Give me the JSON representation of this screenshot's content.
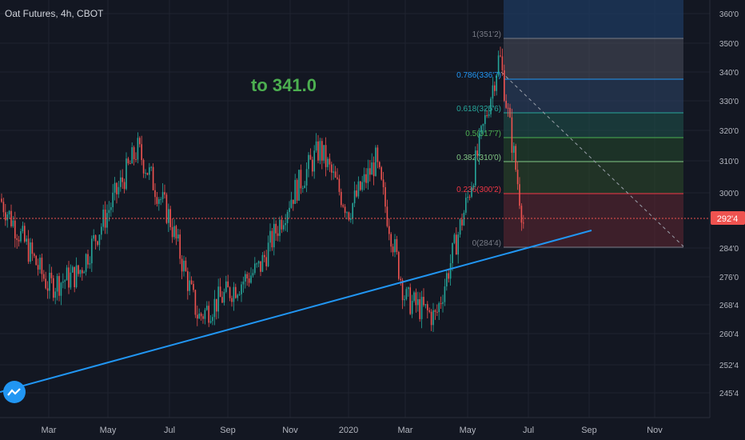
{
  "header": {
    "title": "Oat Futures, 4h, CBOT"
  },
  "annotation": {
    "text": "to 341.0",
    "color": "#4caf50"
  },
  "price_tag": {
    "value": "292'4",
    "color": "#ef5350"
  },
  "y_axis": {
    "ticks": [
      "360'0",
      "350'0",
      "340'0",
      "330'0",
      "320'0",
      "310'0",
      "300'0",
      "292'4",
      "284'0",
      "276'0",
      "268'4",
      "260'4",
      "252'4",
      "245'4"
    ]
  },
  "x_axis": {
    "ticks": [
      "Mar",
      "May",
      "Jul",
      "Sep",
      "Nov",
      "2020",
      "Mar",
      "May",
      "Jul",
      "Sep",
      "Nov"
    ]
  },
  "fib_levels": [
    {
      "label": "1(351'2)",
      "ratio": 1,
      "color": "#787b86"
    },
    {
      "label": "0.786(336'7)",
      "ratio": 0.786,
      "color": "#2196f3"
    },
    {
      "label": "0.618(325'6)",
      "ratio": 0.618,
      "color": "#26a69a"
    },
    {
      "label": "0.5(317'7)",
      "ratio": 0.5,
      "color": "#4caf50"
    },
    {
      "label": "0.382(310'0)",
      "ratio": 0.382,
      "color": "#81c784"
    },
    {
      "label": "0.236(300'2)",
      "ratio": 0.236,
      "color": "#f23645"
    },
    {
      "label": "0(284'4)",
      "ratio": 0,
      "color": "#787b86"
    }
  ],
  "chart_data": {
    "type": "line",
    "title": "Oat Futures, 4h, CBOT",
    "xlabel": "",
    "ylabel": "",
    "ylim": [
      244,
      364
    ],
    "x": [
      "2019-02",
      "2019-03",
      "2019-04",
      "2019-05",
      "2019-06",
      "2019-07",
      "2019-08",
      "2019-09",
      "2019-10",
      "2019-11",
      "2019-12",
      "2020-01",
      "2020-02",
      "2020-03",
      "2020-04",
      "2020-05",
      "2020-06",
      "2020-07"
    ],
    "series": [
      {
        "values": [
          300,
          272,
          276,
          296,
          316,
          294,
          262,
          270,
          278,
          300,
          316,
          296,
          312,
          268,
          262,
          300,
          346,
          292
        ]
      }
    ],
    "current_price": 292.5,
    "trendline": {
      "start": [
        0,
        247
      ],
      "end": [
        740,
        290
      ],
      "color": "#2196f3"
    },
    "grid": true,
    "legend": "none"
  }
}
